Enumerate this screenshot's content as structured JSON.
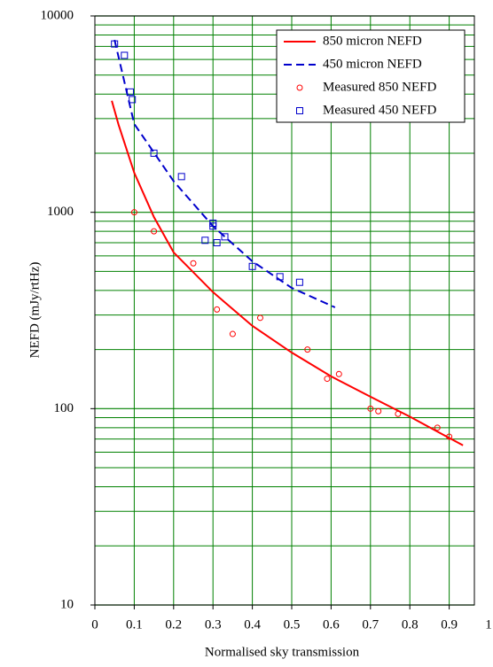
{
  "chart_data": {
    "type": "line",
    "x_label": "Normalised sky transmission",
    "y_label": "NEFD (mJy/rtHz)",
    "log_y": true,
    "grid": true,
    "minor_grid": true,
    "legend": "upper right",
    "grid_color": "#008000",
    "xlim": [
      0,
      1
    ],
    "xticks": [
      0,
      0.1,
      0.2,
      0.3,
      0.4,
      0.5,
      0.6,
      0.7,
      0.8,
      0.9,
      1
    ],
    "ylim": [
      10,
      10000
    ],
    "yticks": [
      10,
      100,
      1000,
      10000
    ],
    "series": [
      {
        "name": "850 micron NEFD",
        "kind": "line",
        "color": "#ff0000",
        "x": [
          0.043,
          0.06,
          0.1,
          0.15,
          0.2,
          0.3,
          0.4,
          0.5,
          0.6,
          0.7,
          0.8,
          0.935
        ],
        "values": [
          3700,
          2800,
          1590,
          946,
          625,
          392,
          264,
          193,
          146,
          115,
          91,
          65
        ]
      },
      {
        "name": "450 micron NEFD",
        "kind": "dashed",
        "color": "#0000cc",
        "x": [
          0.05,
          0.1,
          0.2,
          0.3,
          0.4,
          0.5,
          0.61
        ],
        "values": [
          7550,
          2820,
          1440,
          850,
          563,
          412,
          328
        ]
      },
      {
        "name": "Measured 850 NEFD",
        "kind": "circle",
        "color": "#ff0000",
        "x": [
          0.1,
          0.15,
          0.25,
          0.31,
          0.35,
          0.42,
          0.54,
          0.59,
          0.62,
          0.7,
          0.72,
          0.77,
          0.87,
          0.9
        ],
        "values": [
          1000,
          800,
          550,
          320,
          240,
          290,
          200,
          142,
          150,
          100,
          97,
          94,
          80,
          72
        ]
      },
      {
        "name": "Measured 450 NEFD",
        "kind": "square",
        "color": "#0000cc",
        "x": [
          0.05,
          0.075,
          0.09,
          0.095,
          0.15,
          0.22,
          0.28,
          0.3,
          0.3,
          0.31,
          0.33,
          0.4,
          0.47,
          0.52
        ],
        "values": [
          7200,
          6300,
          4100,
          3750,
          2000,
          1520,
          720,
          880,
          850,
          700,
          750,
          530,
          470,
          440
        ]
      }
    ]
  }
}
